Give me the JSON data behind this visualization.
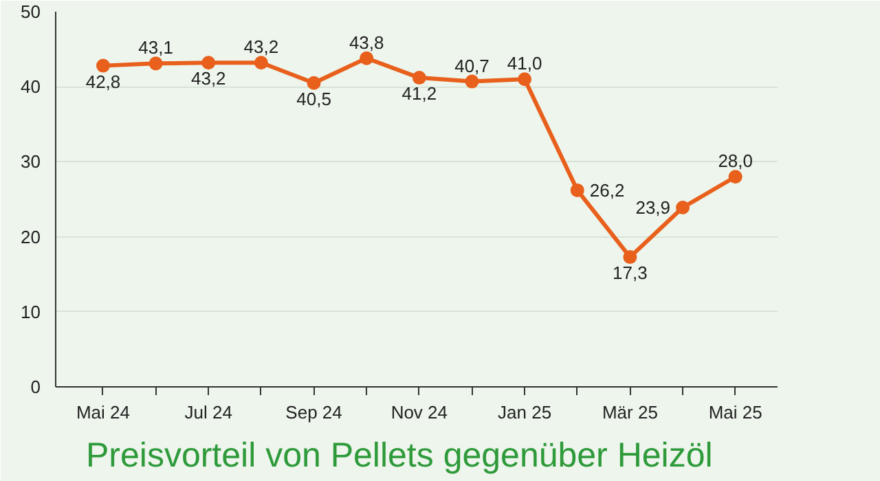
{
  "chart_data": {
    "type": "line",
    "title": "Preisvorteil von Pellets gegenüber Heizöl",
    "categories": [
      "Mai 24",
      null,
      "Jul 24",
      null,
      "Sep 24",
      null,
      "Nov 24",
      null,
      "Jan 25",
      null,
      "Mär 25",
      null,
      "Mai 25"
    ],
    "series": [
      {
        "color": "#e8601c",
        "values": [
          42.8,
          43.1,
          43.2,
          43.2,
          40.5,
          43.8,
          41.2,
          40.7,
          41.0,
          26.2,
          17.3,
          23.9,
          28.0
        ],
        "value_labels": [
          "42,8",
          "43,1",
          "43,2",
          "43,2",
          "40,5",
          "43,8",
          "41,2",
          "40,7",
          "41,0",
          "26,2",
          "17,3",
          "23,9",
          "28,0"
        ]
      }
    ],
    "ylim": [
      0,
      50
    ],
    "yticks": [
      0,
      10,
      20,
      30,
      40,
      50
    ],
    "grid": "y",
    "marker": "circle",
    "line_style": "solid"
  }
}
